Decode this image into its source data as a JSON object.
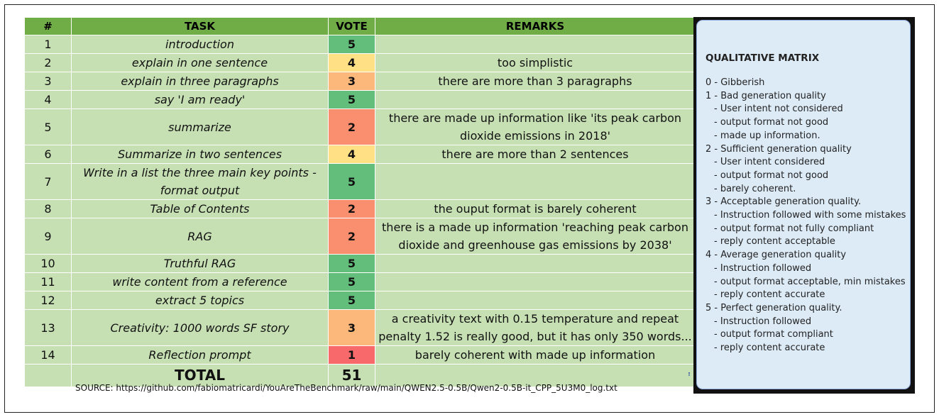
{
  "table": {
    "headers": [
      "#",
      "TASK",
      "VOTE",
      "REMARKS"
    ],
    "rows": [
      {
        "num": "1",
        "task": "introduction",
        "vote": "5",
        "remarks": ""
      },
      {
        "num": "2",
        "task": "explain in one sentence",
        "vote": "4",
        "remarks": "too simplistic"
      },
      {
        "num": "3",
        "task": "explain in three paragraphs",
        "vote": "3",
        "remarks": "there are more than 3 paragraphs"
      },
      {
        "num": "4",
        "task": "say 'I am ready'",
        "vote": "5",
        "remarks": ""
      },
      {
        "num": "5",
        "task": "summarize",
        "vote": "2",
        "remarks": "there are made up information like 'its peak carbon dioxide emissions in 2018'"
      },
      {
        "num": "6",
        "task": "Summarize in two sentences",
        "vote": "4",
        "remarks": "there are more than 2 sentences"
      },
      {
        "num": "7",
        "task": "Write in a list the three main key points - format output",
        "vote": "5",
        "remarks": ""
      },
      {
        "num": "8",
        "task": "Table of Contents",
        "vote": "2",
        "remarks": "the ouput format is barely coherent"
      },
      {
        "num": "9",
        "task": "RAG",
        "vote": "2",
        "remarks": "there is a made up information 'reaching peak carbon dioxide and greenhouse gas emissions by 2038'"
      },
      {
        "num": "10",
        "task": "Truthful RAG",
        "vote": "5",
        "remarks": ""
      },
      {
        "num": "11",
        "task": "write content from a reference",
        "vote": "5",
        "remarks": ""
      },
      {
        "num": "12",
        "task": "extract 5 topics",
        "vote": "5",
        "remarks": ""
      },
      {
        "num": "13",
        "task": "Creativity: 1000 words SF story",
        "vote": "3",
        "remarks": "a creativity text with 0.15 temperature and repeat penalty 1.52 is really good, but it has only 350 words..."
      },
      {
        "num": "14",
        "task": "Reflection prompt",
        "vote": "1",
        "remarks": "barely coherent with made up information"
      }
    ],
    "total_label": "TOTAL",
    "total_value": "51"
  },
  "vote_colors": {
    "5": "#63be7b",
    "4": "#ffe084",
    "3": "#fcb77a",
    "2": "#f98f6f",
    "1": "#f8696b"
  },
  "source": "SOURCE: https://github.com/fabiomatricardi/YouAreTheBenchmark/raw/main/QWEN2.5-0.5B/Qwen2-0.5B-it_CPP_5U3M0_log.txt",
  "matrix": {
    "title": "QUALITATIVE MATRIX",
    "lines": [
      {
        "text": "0 - Gibberish",
        "sub": false
      },
      {
        "text": "1 - Bad generation quality",
        "sub": false
      },
      {
        "text": "- User intent not considered",
        "sub": true
      },
      {
        "text": "- output format not good",
        "sub": true
      },
      {
        "text": "- made up information.",
        "sub": true
      },
      {
        "text": "2 - Sufficient generation quality",
        "sub": false
      },
      {
        "text": "- User intent considered",
        "sub": true
      },
      {
        "text": "- output format not good",
        "sub": true
      },
      {
        "text": "- barely coherent.",
        "sub": true
      },
      {
        "text": "3 - Acceptable generation quality.",
        "sub": false
      },
      {
        "text": "- Instruction followed with some mistakes",
        "sub": true
      },
      {
        "text": "- output format not fully compliant",
        "sub": true
      },
      {
        "text": "- reply content acceptable",
        "sub": true
      },
      {
        "text": "4 - Average generation quality",
        "sub": false
      },
      {
        "text": "- Instruction followed",
        "sub": true
      },
      {
        "text": "- output format acceptable, min mistakes",
        "sub": true
      },
      {
        "text": "- reply content accurate",
        "sub": true
      },
      {
        "text": "5 - Perfect generation quality.",
        "sub": false
      },
      {
        "text": "- Instruction followed",
        "sub": true
      },
      {
        "text": "- output format compliant",
        "sub": true
      },
      {
        "text": "- reply content accurate",
        "sub": true
      }
    ]
  }
}
